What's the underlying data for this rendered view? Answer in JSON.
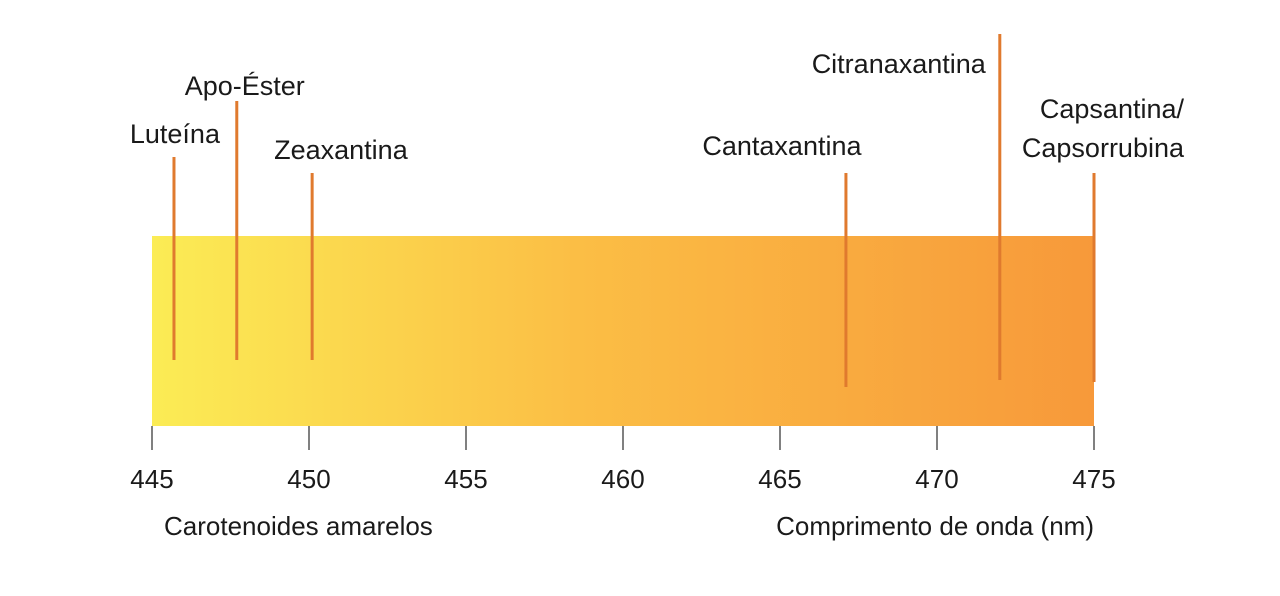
{
  "colors": {
    "band_start": "#fbec55",
    "band_end": "#f7993a",
    "marker_line": "#e07a2e",
    "axis": "#555555",
    "text": "#1a1a1a"
  },
  "chart_data": {
    "type": "spectrum-band",
    "xlim": [
      445,
      475
    ],
    "ticks": [
      445,
      450,
      455,
      460,
      465,
      470,
      475
    ],
    "left_caption": "Carotenoides amarelos",
    "right_caption": "Comprimento de onda (nm)",
    "markers": [
      {
        "label": "Luteína",
        "value": 445.7
      },
      {
        "label": "Apo-Éster",
        "value": 447.7
      },
      {
        "label": "Zeaxantina",
        "value": 450.1
      },
      {
        "label": "Cantaxantina",
        "value": 467.1
      },
      {
        "label": "Citranaxantina",
        "value": 472.0
      },
      {
        "label": "Capsantina/",
        "label2": "Capsorrubina",
        "value": 475.0
      }
    ]
  }
}
